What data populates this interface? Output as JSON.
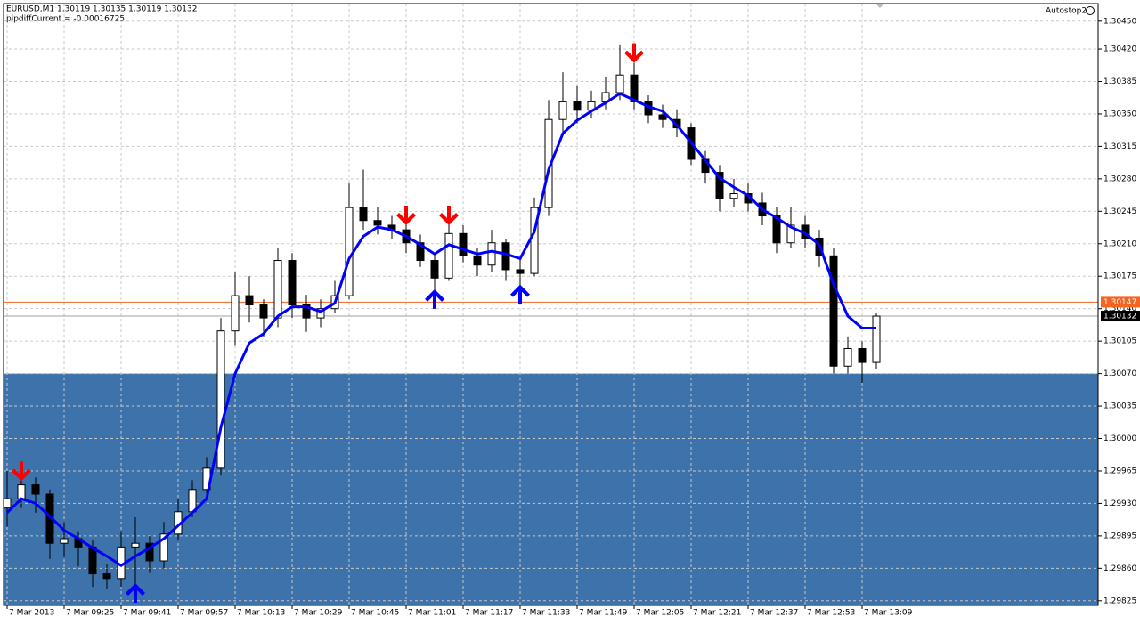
{
  "header": {
    "symbol_line": "EURUSD,M1  1.30119 1.30135 1.30119 1.30132",
    "indicator_line": "pipdiffCurrent = -0.00016725",
    "expert": "Autostop2"
  },
  "chart_data": {
    "type": "candlestick",
    "categories": [
      "7 Mar 2013",
      null,
      null,
      null,
      "7 Mar 09:25",
      null,
      null,
      null,
      "7 Mar 09:41",
      null,
      null,
      null,
      "7 Mar 09:57",
      null,
      null,
      null,
      "7 Mar 10:13",
      null,
      null,
      null,
      "7 Mar 10:29",
      null,
      null,
      null,
      "7 Mar 10:45",
      null,
      null,
      null,
      "7 Mar 11:01",
      null,
      null,
      null,
      "7 Mar 11:17",
      null,
      null,
      null,
      "7 Mar 11:33",
      null,
      null,
      null,
      "7 Mar 11:49",
      null,
      null,
      null,
      "7 Mar 12:05",
      null,
      null,
      null,
      "7 Mar 12:21",
      null,
      null,
      null,
      "7 Mar 12:37",
      null,
      null,
      null,
      "7 Mar 12:53",
      null,
      null,
      null,
      "7 Mar 13:09",
      null
    ],
    "open": [
      1.29925,
      1.29935,
      1.2995,
      1.2994,
      1.29887,
      1.29892,
      1.29883,
      1.29854,
      1.29849,
      1.29883,
      1.29887,
      1.29868,
      1.29897,
      1.29921,
      1.29945,
      1.29968,
      1.30116,
      1.30154,
      1.30144,
      1.3013,
      1.30192,
      1.30144,
      1.3013,
      1.3014,
      1.30154,
      1.30249,
      1.30235,
      1.3023,
      1.30225,
      1.30211,
      1.30192,
      1.30173,
      1.30221,
      1.30197,
      1.30187,
      1.30211,
      1.30182,
      1.30178,
      1.30249,
      1.30344,
      1.30363,
      1.30354,
      1.30363,
      1.30373,
      1.30392,
      1.30363,
      1.30349,
      1.30344,
      1.30335,
      1.30301,
      1.30287,
      1.30259,
      1.30264,
      1.30254,
      1.3024,
      1.30211,
      1.3023,
      1.30216,
      1.30197,
      1.30078,
      1.30097,
      1.30082
    ],
    "high": [
      1.29965,
      1.29962,
      1.29958,
      1.29945,
      1.2991,
      1.299,
      1.2989,
      1.29865,
      1.299,
      1.29915,
      1.29895,
      1.2991,
      1.29935,
      1.29955,
      1.2998,
      1.3013,
      1.3018,
      1.30175,
      1.3015,
      1.30205,
      1.302,
      1.30155,
      1.3015,
      1.3017,
      1.30275,
      1.3029,
      1.3025,
      1.3024,
      1.30235,
      1.3022,
      1.302,
      1.3024,
      1.3023,
      1.30205,
      1.30225,
      1.30215,
      1.30195,
      1.3026,
      1.30365,
      1.30395,
      1.3038,
      1.30375,
      1.3039,
      1.30425,
      1.30405,
      1.3037,
      1.3036,
      1.30355,
      1.3034,
      1.3031,
      1.30295,
      1.3028,
      1.30275,
      1.30265,
      1.3025,
      1.3025,
      1.3024,
      1.30225,
      1.30205,
      1.3011,
      1.30105,
      1.30135
    ],
    "low": [
      1.29905,
      1.29925,
      1.2992,
      1.2987,
      1.29872,
      1.29862,
      1.2984,
      1.29838,
      1.2984,
      1.2983,
      1.29855,
      1.2986,
      1.2989,
      1.29915,
      1.2994,
      1.2996,
      1.301,
      1.30125,
      1.3011,
      1.3012,
      1.3013,
      1.30115,
      1.3012,
      1.30135,
      1.3015,
      1.30225,
      1.3022,
      1.30215,
      1.302,
      1.30185,
      1.3016,
      1.3017,
      1.3019,
      1.30175,
      1.3018,
      1.3017,
      1.30165,
      1.30175,
      1.3024,
      1.3033,
      1.3034,
      1.30345,
      1.30355,
      1.30365,
      1.30355,
      1.3034,
      1.30335,
      1.30325,
      1.30295,
      1.30275,
      1.30245,
      1.3025,
      1.30245,
      1.3023,
      1.302,
      1.30205,
      1.30205,
      1.30185,
      1.3007,
      1.3007,
      1.3006,
      1.30075
    ],
    "close": [
      1.29935,
      1.2995,
      1.2994,
      1.29887,
      1.29892,
      1.29883,
      1.29854,
      1.29849,
      1.29883,
      1.29887,
      1.29868,
      1.29897,
      1.29921,
      1.29945,
      1.29968,
      1.30116,
      1.30154,
      1.30144,
      1.3013,
      1.30192,
      1.30144,
      1.3013,
      1.3014,
      1.30154,
      1.30249,
      1.30235,
      1.3023,
      1.30225,
      1.30211,
      1.30192,
      1.30173,
      1.30221,
      1.30197,
      1.30187,
      1.30211,
      1.30182,
      1.30178,
      1.30249,
      1.30344,
      1.30363,
      1.30354,
      1.30363,
      1.30373,
      1.30392,
      1.30363,
      1.30349,
      1.30344,
      1.30335,
      1.30301,
      1.30287,
      1.30259,
      1.30264,
      1.30254,
      1.3024,
      1.30211,
      1.3023,
      1.30216,
      1.30197,
      1.30078,
      1.30097,
      1.30082,
      1.30132
    ],
    "ma": {
      "color": "#0000ff",
      "values": [
        1.2992,
        1.29935,
        1.2993,
        1.29916,
        1.29901,
        1.29892,
        1.29882,
        1.29873,
        1.29863,
        1.29873,
        1.29882,
        1.29892,
        1.29906,
        1.2992,
        1.29935,
        1.30012,
        1.3007,
        1.30103,
        1.30113,
        1.30132,
        1.30142,
        1.30142,
        1.30137,
        1.30146,
        1.30194,
        1.30218,
        1.30228,
        1.30225,
        1.30218,
        1.30209,
        1.30199,
        1.30209,
        1.30204,
        1.30199,
        1.30202,
        1.30199,
        1.30194,
        1.30223,
        1.3029,
        1.30329,
        1.30343,
        1.30353,
        1.30362,
        1.30372,
        1.30365,
        1.30358,
        1.30353,
        1.30338,
        1.30319,
        1.303,
        1.30281,
        1.30271,
        1.30262,
        1.30247,
        1.30238,
        1.30228,
        1.30221,
        1.30209,
        1.30166,
        1.30132,
        1.30119,
        1.30119
      ]
    },
    "sell_signals": {
      "color": "#ff0000",
      "values": [
        null,
        1.29954,
        null,
        null,
        null,
        null,
        null,
        null,
        null,
        null,
        null,
        null,
        null,
        null,
        null,
        null,
        null,
        null,
        null,
        null,
        null,
        null,
        null,
        null,
        null,
        null,
        null,
        null,
        1.3023,
        null,
        null,
        1.3023,
        null,
        null,
        null,
        null,
        null,
        null,
        null,
        null,
        null,
        null,
        null,
        null,
        1.30405,
        null,
        null,
        null,
        null,
        null,
        null,
        null,
        null,
        null,
        null,
        null,
        null,
        null,
        null,
        null,
        null,
        null
      ]
    },
    "buy_signals": {
      "color": "#0000ff",
      "values": [
        null,
        null,
        null,
        null,
        null,
        null,
        null,
        null,
        null,
        1.29844,
        null,
        null,
        null,
        null,
        null,
        null,
        null,
        null,
        null,
        null,
        null,
        null,
        null,
        null,
        null,
        null,
        null,
        null,
        null,
        null,
        1.30161,
        null,
        null,
        null,
        null,
        null,
        1.30166,
        null,
        null,
        null,
        null,
        null,
        null,
        null,
        null,
        null,
        null,
        null,
        null,
        null,
        null,
        null,
        null,
        null,
        null,
        null,
        null,
        null,
        null,
        null,
        null,
        null
      ]
    },
    "zone": {
      "top": 1.3007,
      "color": "#3d72ab"
    },
    "level_line": {
      "value": 1.30147,
      "color": "#f26522"
    },
    "current_price": 1.30132,
    "ylim": [
      1.2982,
      1.30469
    ],
    "yticks": [
      {
        "value": 1.3045,
        "label": "1.30450"
      },
      {
        "value": 1.3042,
        "label": "1.30420"
      },
      1.30385,
      {
        "value": 1.3035,
        "label": "1.30350"
      },
      1.30315,
      {
        "value": 1.3028,
        "label": "1.30280"
      },
      1.30245,
      {
        "value": 1.3021,
        "label": "1.30210"
      },
      1.30175,
      {
        "value": 1.3014,
        "label": "1.30140"
      },
      1.30105,
      {
        "value": 1.3007,
        "label": "1.30070"
      },
      1.30035,
      {
        "value": 1.3,
        "label": "1.30000"
      },
      1.29965,
      {
        "value": 1.2993,
        "label": "1.29930"
      },
      1.29895,
      {
        "value": 1.2986,
        "label": "1.29860"
      },
      1.29825
    ],
    "grid": true
  }
}
